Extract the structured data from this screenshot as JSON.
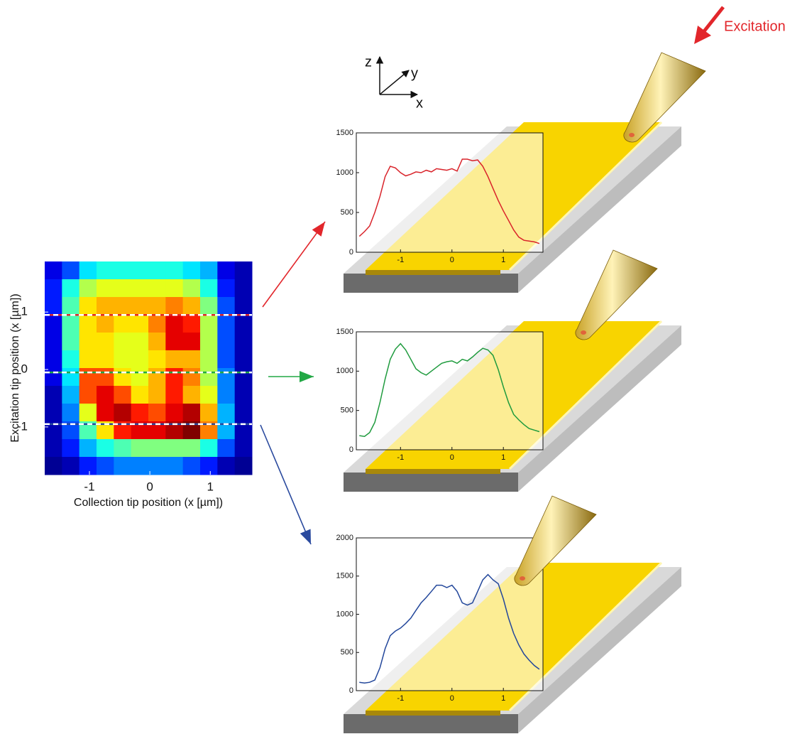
{
  "annotations": {
    "excitation": "Excitation",
    "axis_z": "z",
    "axis_y": "y",
    "axis_x": "x"
  },
  "chart_data": [
    {
      "type": "heatmap",
      "xlabel": "Collection tip position (x [µm])",
      "ylabel": "Excitation tip position (x [µm])",
      "xlim": [
        -1.74,
        1.69
      ],
      "ylim": [
        -1.83,
        1.88
      ],
      "xticks": [
        -1,
        0,
        1
      ],
      "yticks": [
        -1,
        0,
        1
      ],
      "values": [
        [
          0.1,
          0.2,
          0.35,
          0.4,
          0.4,
          0.4,
          0.4,
          0.4,
          0.35,
          0.3,
          0.1,
          0.05
        ],
        [
          0.15,
          0.4,
          0.55,
          0.6,
          0.6,
          0.6,
          0.6,
          0.6,
          0.55,
          0.4,
          0.15,
          0.05
        ],
        [
          0.15,
          0.45,
          0.65,
          0.7,
          0.7,
          0.7,
          0.7,
          0.75,
          0.7,
          0.5,
          0.2,
          0.05
        ],
        [
          0.1,
          0.45,
          0.65,
          0.7,
          0.65,
          0.65,
          0.75,
          0.9,
          0.85,
          0.55,
          0.2,
          0.05
        ],
        [
          0.1,
          0.45,
          0.65,
          0.65,
          0.6,
          0.6,
          0.7,
          0.9,
          0.9,
          0.55,
          0.2,
          0.05
        ],
        [
          0.1,
          0.4,
          0.65,
          0.65,
          0.6,
          0.6,
          0.65,
          0.7,
          0.7,
          0.55,
          0.2,
          0.05
        ],
        [
          0.1,
          0.35,
          0.8,
          0.8,
          0.65,
          0.6,
          0.7,
          0.85,
          0.75,
          0.55,
          0.25,
          0.05
        ],
        [
          0.05,
          0.3,
          0.8,
          0.9,
          0.8,
          0.65,
          0.7,
          0.85,
          0.7,
          0.6,
          0.25,
          0.05
        ],
        [
          0.05,
          0.25,
          0.6,
          0.9,
          0.95,
          0.85,
          0.8,
          0.9,
          0.95,
          0.7,
          0.3,
          0.05
        ],
        [
          0.05,
          0.2,
          0.45,
          0.65,
          0.85,
          0.9,
          0.9,
          0.95,
          1,
          0.75,
          0.3,
          0.05
        ],
        [
          0.05,
          0.15,
          0.3,
          0.4,
          0.45,
          0.5,
          0.5,
          0.5,
          0.5,
          0.4,
          0.2,
          0.05
        ],
        [
          0.02,
          0.05,
          0.15,
          0.2,
          0.25,
          0.25,
          0.25,
          0.25,
          0.2,
          0.15,
          0.05,
          0.02
        ]
      ],
      "cuts": [
        {
          "value": 0.95,
          "color": "#e2262b"
        },
        {
          "value": -0.05,
          "color": "#22a845"
        },
        {
          "value": -0.95,
          "color": "#2a4a9e"
        }
      ]
    },
    {
      "type": "line",
      "color": "#d9232a",
      "xlim": [
        -1.86,
        1.77
      ],
      "ylim": [
        0,
        1500
      ],
      "xticks": [
        -1,
        0,
        1
      ],
      "yticks": [
        0,
        500,
        1000,
        1500
      ],
      "x": [
        -1.8,
        -1.7,
        -1.6,
        -1.5,
        -1.4,
        -1.3,
        -1.2,
        -1.1,
        -1.0,
        -0.9,
        -0.8,
        -0.7,
        -0.6,
        -0.5,
        -0.4,
        -0.3,
        -0.2,
        -0.1,
        0,
        0.1,
        0.2,
        0.3,
        0.4,
        0.5,
        0.6,
        0.7,
        0.8,
        0.9,
        1.0,
        1.1,
        1.2,
        1.3,
        1.4,
        1.5,
        1.6,
        1.7
      ],
      "values": [
        200,
        260,
        330,
        500,
        700,
        950,
        1080,
        1060,
        1000,
        960,
        980,
        1010,
        1000,
        1030,
        1010,
        1050,
        1040,
        1030,
        1050,
        1020,
        1170,
        1170,
        1150,
        1160,
        1080,
        950,
        800,
        650,
        520,
        400,
        280,
        190,
        150,
        140,
        130,
        110
      ]
    },
    {
      "type": "line",
      "color": "#1f9b3e",
      "xlim": [
        -1.86,
        1.77
      ],
      "ylim": [
        0,
        1500
      ],
      "xticks": [
        -1,
        0,
        1
      ],
      "yticks": [
        0,
        500,
        1000,
        1500
      ],
      "x": [
        -1.8,
        -1.7,
        -1.6,
        -1.5,
        -1.4,
        -1.3,
        -1.2,
        -1.1,
        -1.0,
        -0.9,
        -0.8,
        -0.7,
        -0.6,
        -0.5,
        -0.4,
        -0.3,
        -0.2,
        -0.1,
        0,
        0.1,
        0.2,
        0.3,
        0.4,
        0.5,
        0.6,
        0.7,
        0.8,
        0.9,
        1.0,
        1.1,
        1.2,
        1.3,
        1.4,
        1.5,
        1.6,
        1.7
      ],
      "values": [
        180,
        170,
        220,
        350,
        600,
        900,
        1150,
        1280,
        1350,
        1270,
        1150,
        1030,
        980,
        950,
        1000,
        1050,
        1100,
        1120,
        1130,
        1100,
        1150,
        1130,
        1180,
        1240,
        1290,
        1270,
        1200,
        1020,
        800,
        600,
        450,
        380,
        320,
        270,
        250,
        230
      ]
    },
    {
      "type": "line",
      "color": "#23479b",
      "xlim": [
        -1.86,
        1.77
      ],
      "ylim": [
        0,
        2000
      ],
      "xticks": [
        -1,
        0,
        1
      ],
      "yticks": [
        0,
        500,
        1000,
        1500,
        2000
      ],
      "x": [
        -1.8,
        -1.7,
        -1.6,
        -1.5,
        -1.4,
        -1.3,
        -1.2,
        -1.1,
        -1.0,
        -0.9,
        -0.8,
        -0.7,
        -0.6,
        -0.5,
        -0.4,
        -0.3,
        -0.2,
        -0.1,
        0,
        0.1,
        0.2,
        0.3,
        0.4,
        0.5,
        0.6,
        0.7,
        0.8,
        0.9,
        1.0,
        1.1,
        1.2,
        1.3,
        1.4,
        1.5,
        1.6,
        1.7
      ],
      "values": [
        110,
        100,
        110,
        140,
        300,
        550,
        720,
        780,
        820,
        880,
        950,
        1050,
        1150,
        1220,
        1300,
        1380,
        1380,
        1350,
        1380,
        1300,
        1150,
        1120,
        1150,
        1300,
        1450,
        1520,
        1450,
        1400,
        1200,
        950,
        750,
        600,
        480,
        400,
        330,
        280
      ]
    }
  ]
}
